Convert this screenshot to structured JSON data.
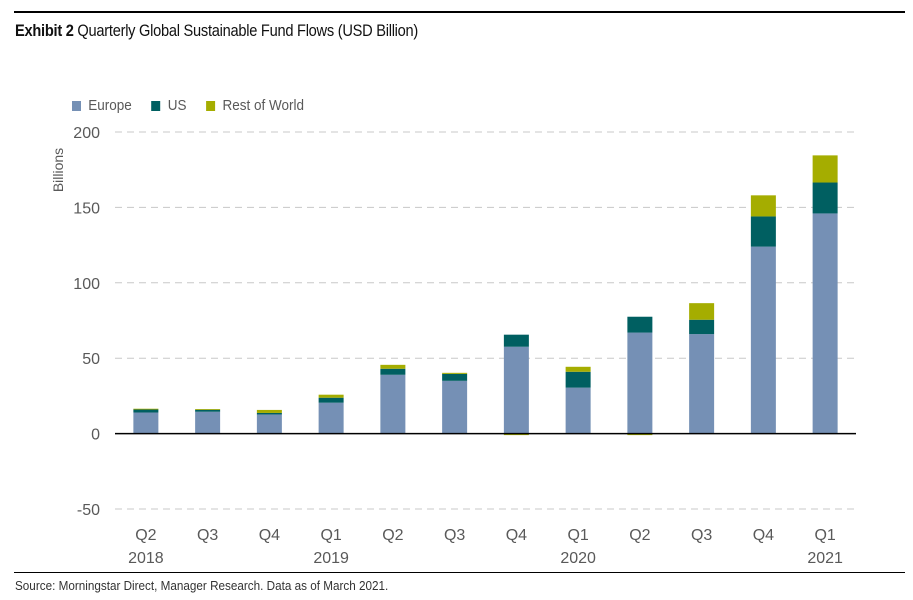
{
  "header": {
    "exhibit_label": "Exhibit 2",
    "title": "Quarterly Global Sustainable Fund Flows (USD Billion)"
  },
  "footer": {
    "source": "Source: Morningstar Direct, Manager Research. Data as of March 2021."
  },
  "chart_data": {
    "type": "bar",
    "stacked": true,
    "title": "Quarterly Global Sustainable Fund Flows (USD Billion)",
    "xlabel": "",
    "ylabel": "Billions",
    "ylim": [
      -50,
      200
    ],
    "yticks": [
      200,
      150,
      100,
      50,
      0,
      -50
    ],
    "grid": true,
    "legend_position": "top-left",
    "categories": [
      "Q2 2018",
      "Q3 2018",
      "Q4 2018",
      "Q1 2019",
      "Q2 2019",
      "Q3 2019",
      "Q4 2019",
      "Q1 2020",
      "Q2 2020",
      "Q3 2020",
      "Q4 2020",
      "Q1 2021"
    ],
    "tick_labels": [
      {
        "quarter": "Q2",
        "year": "2018"
      },
      {
        "quarter": "Q3",
        "year": ""
      },
      {
        "quarter": "Q4",
        "year": ""
      },
      {
        "quarter": "Q1",
        "year": "2019"
      },
      {
        "quarter": "Q2",
        "year": ""
      },
      {
        "quarter": "Q3",
        "year": ""
      },
      {
        "quarter": "Q4",
        "year": ""
      },
      {
        "quarter": "Q1",
        "year": "2020"
      },
      {
        "quarter": "Q2",
        "year": ""
      },
      {
        "quarter": "Q3",
        "year": ""
      },
      {
        "quarter": "Q4",
        "year": ""
      },
      {
        "quarter": "Q1",
        "year": "2021"
      }
    ],
    "series": [
      {
        "name": "Europe",
        "color": "#7590B5",
        "values": [
          14,
          14.5,
          12.7,
          20.5,
          39,
          35,
          57.6,
          30.5,
          67,
          66,
          124,
          146
        ]
      },
      {
        "name": "US",
        "color": "#005F61",
        "values": [
          2,
          1.3,
          1,
          3.3,
          4,
          4.6,
          8,
          10.5,
          10.5,
          9.5,
          20,
          20.5
        ]
      },
      {
        "name": "Rest of World",
        "color": "#A5AD00",
        "values": [
          0.5,
          0.5,
          2,
          2,
          2.6,
          0.7,
          -1,
          3.3,
          -1,
          11,
          14,
          18
        ]
      }
    ]
  }
}
